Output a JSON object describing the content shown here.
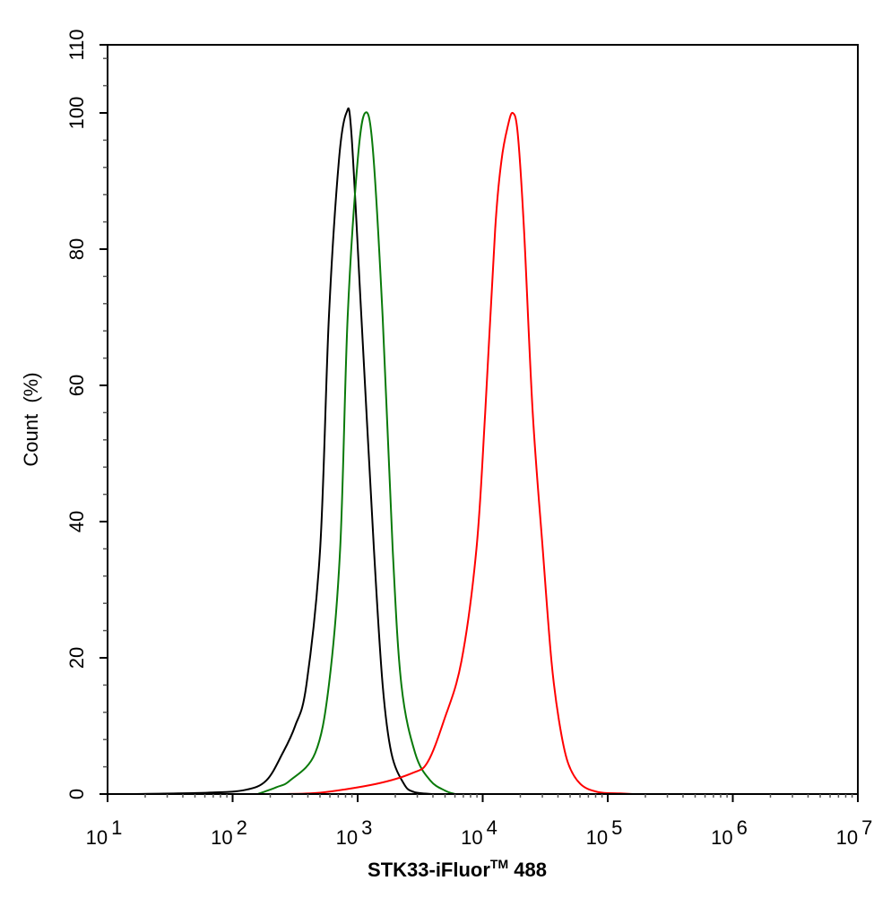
{
  "chart_data": {
    "type": "line",
    "title": "",
    "xlabel": "STK33-iFluor",
    "xlabel_tm": "TM",
    "xlabel_suffix": " 488",
    "ylabel": "Count  (%)",
    "xscale": "log",
    "xlim_log10": [
      1,
      7
    ],
    "ylim": [
      0,
      110
    ],
    "x_ticks": [
      {
        "base": "10",
        "exp": "1",
        "log10": 1
      },
      {
        "base": "10",
        "exp": "2",
        "log10": 2
      },
      {
        "base": "10",
        "exp": "3",
        "log10": 3
      },
      {
        "base": "10",
        "exp": "4",
        "log10": 4
      },
      {
        "base": "10",
        "exp": "5",
        "log10": 5
      },
      {
        "base": "10",
        "exp": "6",
        "log10": 6
      },
      {
        "base": "10",
        "exp": "7",
        "log10": 7
      }
    ],
    "y_ticks": [
      "0",
      "20",
      "40",
      "60",
      "80",
      "100",
      "110"
    ],
    "grid": false,
    "legend": "none",
    "series": [
      {
        "name": "black",
        "color": "#000000",
        "log10_x": [
          1.2,
          1.8,
          2.1,
          2.27,
          2.4,
          2.5,
          2.59,
          2.7,
          2.77,
          2.85,
          2.91,
          2.95,
          3.03,
          3.13,
          3.2,
          3.27,
          3.37,
          3.45,
          3.6
        ],
        "y": [
          0,
          0.2,
          0.6,
          2,
          6,
          10,
          16,
          36,
          70,
          93,
          100,
          97,
          70,
          36,
          16,
          6,
          1.5,
          0.3,
          0
        ]
      },
      {
        "name": "green",
        "color": "#0a7a0a",
        "log10_x": [
          2.2,
          2.35,
          2.46,
          2.66,
          2.77,
          2.86,
          2.92,
          3.0,
          3.06,
          3.12,
          3.2,
          3.28,
          3.35,
          3.46,
          3.58,
          3.7,
          3.78
        ],
        "y": [
          0,
          1,
          2,
          6,
          16,
          36,
          70,
          93,
          100,
          95,
          70,
          36,
          16,
          6,
          2,
          0.5,
          0
        ]
      },
      {
        "name": "red",
        "color": "#ff0000",
        "log10_x": [
          2.4,
          2.7,
          3.15,
          3.44,
          3.56,
          3.69,
          3.83,
          3.95,
          4.02,
          4.1,
          4.15,
          4.2,
          4.24,
          4.28,
          4.33,
          4.4,
          4.48,
          4.55,
          4.61,
          4.68,
          4.78,
          4.92,
          5.1,
          5.2
        ],
        "y": [
          0,
          0.2,
          1.5,
          3.1,
          4.7,
          10.8,
          19.5,
          36,
          56,
          83,
          93,
          98,
          100,
          97,
          83,
          56,
          36,
          19.5,
          10.8,
          4.7,
          1.5,
          0.3,
          0.1,
          0
        ]
      }
    ]
  }
}
